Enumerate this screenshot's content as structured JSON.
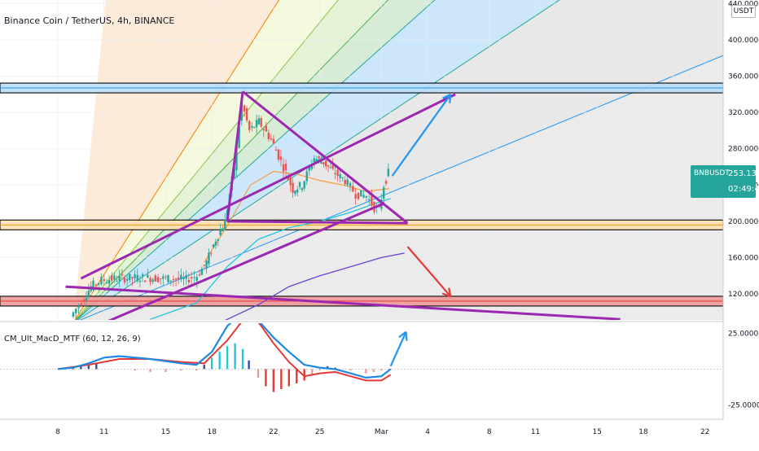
{
  "header": {
    "title": "Binance Coin / TetherUS, 4h, BINANCE",
    "unit_badge": [
      "USDT"
    ]
  },
  "price_badge": {
    "symbol": "BNBUSDT",
    "last_price": "253.1377",
    "countdown": "02:49:47"
  },
  "indicator": {
    "title": "CM_Ult_MacD_MTF (60, 12, 26, 9)",
    "scale": [
      {
        "label": "25.0000",
        "value": 25
      },
      {
        "label": "-25.0000",
        "value": -25
      }
    ]
  },
  "chart_data": {
    "type": "candlestick",
    "symbol": "Binance Coin / TetherUS",
    "interval": "4h",
    "exchange": "BINANCE",
    "quote_unit": "USDT",
    "ylim": [
      88,
      440
    ],
    "y_ticks": [
      {
        "label": "440.0000",
        "value": 440
      },
      {
        "label": "400.0000",
        "value": 400
      },
      {
        "label": "360.0000",
        "value": 360
      },
      {
        "label": "320.0000",
        "value": 320
      },
      {
        "label": "280.0000",
        "value": 280
      },
      {
        "label": "240.0000",
        "value": 240
      },
      {
        "label": "200.0000",
        "value": 200
      },
      {
        "label": "160.0000",
        "value": 160
      },
      {
        "label": "120.0000",
        "value": 120
      }
    ],
    "x_ticks": [
      {
        "label": "8",
        "day": 8
      },
      {
        "label": "11",
        "day": 11
      },
      {
        "label": "15",
        "day": 15
      },
      {
        "label": "18",
        "day": 18
      },
      {
        "label": "22",
        "day": 22
      },
      {
        "label": "25",
        "day": 25
      },
      {
        "label": "Mar",
        "day": 29
      },
      {
        "label": "4",
        "day": 32
      },
      {
        "label": "8",
        "day": 36
      },
      {
        "label": "11",
        "day": 39
      },
      {
        "label": "15",
        "day": 43
      },
      {
        "label": "18",
        "day": 46
      },
      {
        "label": "22",
        "day": 50
      }
    ],
    "price_path": [
      {
        "day": 9.0,
        "price": 95
      },
      {
        "day": 9.7,
        "price": 112
      },
      {
        "day": 10.3,
        "price": 128
      },
      {
        "day": 11.0,
        "price": 135
      },
      {
        "day": 12.0,
        "price": 137
      },
      {
        "day": 13.5,
        "price": 138
      },
      {
        "day": 15.0,
        "price": 137
      },
      {
        "day": 16.5,
        "price": 136
      },
      {
        "day": 17.2,
        "price": 140
      },
      {
        "day": 17.8,
        "price": 155
      },
      {
        "day": 18.4,
        "price": 180
      },
      {
        "day": 19.0,
        "price": 200
      },
      {
        "day": 19.6,
        "price": 260
      },
      {
        "day": 20.1,
        "price": 330
      },
      {
        "day": 20.6,
        "price": 300
      },
      {
        "day": 21.2,
        "price": 310
      },
      {
        "day": 22.0,
        "price": 290
      },
      {
        "day": 22.8,
        "price": 260
      },
      {
        "day": 23.4,
        "price": 235
      },
      {
        "day": 24.0,
        "price": 240
      },
      {
        "day": 24.8,
        "price": 270
      },
      {
        "day": 25.4,
        "price": 265
      },
      {
        "day": 26.0,
        "price": 255
      },
      {
        "day": 26.8,
        "price": 245
      },
      {
        "day": 27.5,
        "price": 230
      },
      {
        "day": 28.2,
        "price": 228
      },
      {
        "day": 28.7,
        "price": 215
      },
      {
        "day": 29.0,
        "price": 212
      },
      {
        "day": 29.3,
        "price": 240
      },
      {
        "day": 29.6,
        "price": 253
      }
    ],
    "moving_averages": [
      {
        "name": "",
        "color": "#f7a046",
        "points": [
          [
            17.5,
            155
          ],
          [
            19,
            195
          ],
          [
            20.5,
            240
          ],
          [
            22,
            255
          ],
          [
            23.5,
            252
          ],
          [
            25,
            245
          ],
          [
            26.5,
            240
          ],
          [
            28,
            233
          ],
          [
            29.5,
            236
          ]
        ]
      },
      {
        "name": "",
        "color": "#22c5e5",
        "points": [
          [
            14,
            92
          ],
          [
            17,
            110
          ],
          [
            19,
            150
          ],
          [
            21,
            180
          ],
          [
            23,
            193
          ],
          [
            25,
            200
          ],
          [
            27,
            210
          ],
          [
            29,
            222
          ],
          [
            29.6,
            225
          ]
        ]
      },
      {
        "name": "",
        "color": "#6c3fd6",
        "points": [
          [
            18.5,
            88
          ],
          [
            21,
            108
          ],
          [
            23,
            128
          ],
          [
            25,
            140
          ],
          [
            27,
            150
          ],
          [
            29,
            160
          ],
          [
            30.5,
            165
          ]
        ]
      }
    ],
    "horizontal_levels": [
      {
        "price": 347,
        "color": "#2196f3",
        "fill": "#bbdefb"
      },
      {
        "price": 196,
        "color": "#f39c12",
        "fill": "#ffe0b2"
      },
      {
        "price": 112,
        "color": "#e53935",
        "fill": "#ef9a9a"
      }
    ],
    "drawn_lines": [
      {
        "from": [
          20.0,
          343
        ],
        "to": [
          30.7,
          198
        ],
        "color": "#9c27b0"
      },
      {
        "from": [
          20.0,
          343
        ],
        "to": [
          19.0,
          200
        ],
        "color": "#9c27b0"
      },
      {
        "from": [
          19.0,
          200
        ],
        "to": [
          30.7,
          198
        ],
        "color": "#9c27b0"
      },
      {
        "from": [
          9.5,
          137
        ],
        "to": [
          33.8,
          340
        ],
        "color": "#9c27b0"
      },
      {
        "from": [
          8.5,
          128
        ],
        "to": [
          44.5,
          92
        ],
        "color": "#9c27b0"
      },
      {
        "from": [
          11.0,
          88
        ],
        "to": [
          29.2,
          220
        ],
        "color": "#9c27b0"
      }
    ],
    "forecast_arrows": [
      {
        "from": [
          29.7,
          250
        ],
        "to": [
          33.5,
          340
        ],
        "color": "#2196f3"
      },
      {
        "from": [
          30.7,
          172
        ],
        "to": [
          33.5,
          117
        ],
        "color": "#e53935"
      }
    ],
    "pitchfan": {
      "origin": [
        9.0,
        88
      ],
      "rays": [
        {
          "to": [
            22.2,
            440
          ],
          "color": "#f57c00"
        },
        {
          "to": [
            26.0,
            440
          ],
          "color": "#8bc34a"
        },
        {
          "to": [
            29.2,
            440
          ],
          "color": "#4caf50"
        },
        {
          "to": [
            32.2,
            440
          ],
          "color": "#26a69a"
        },
        {
          "to": [
            40.2,
            440
          ],
          "color": "#26a69a"
        },
        {
          "to": [
            51.5,
            385
          ],
          "color": "#2196f3"
        }
      ]
    },
    "macd": {
      "ylim": [
        -35,
        32
      ],
      "macd_line": [
        [
          8,
          0
        ],
        [
          9,
          1
        ],
        [
          10,
          4
        ],
        [
          11,
          8
        ],
        [
          12,
          9
        ],
        [
          14,
          7
        ],
        [
          16,
          4
        ],
        [
          17,
          3
        ],
        [
          18,
          12
        ],
        [
          19,
          30
        ],
        [
          20,
          40
        ],
        [
          21,
          34
        ],
        [
          22,
          22
        ],
        [
          23,
          12
        ],
        [
          24,
          3
        ],
        [
          25,
          1
        ],
        [
          26,
          0
        ],
        [
          27,
          -3
        ],
        [
          28,
          -6
        ],
        [
          29,
          -5
        ],
        [
          29.6,
          0
        ]
      ],
      "signal_line": [
        [
          8,
          0
        ],
        [
          10,
          3
        ],
        [
          12,
          7
        ],
        [
          14,
          7
        ],
        [
          16,
          5
        ],
        [
          17.5,
          4
        ],
        [
          19,
          20
        ],
        [
          20,
          34
        ],
        [
          21,
          33
        ],
        [
          22,
          18
        ],
        [
          23,
          5
        ],
        [
          24,
          -5
        ],
        [
          25,
          -3
        ],
        [
          26,
          -2
        ],
        [
          27,
          -5
        ],
        [
          28,
          -8
        ],
        [
          29,
          -8
        ],
        [
          29.6,
          -4
        ]
      ],
      "histogram": [
        [
          9,
          1
        ],
        [
          9.5,
          2
        ],
        [
          10,
          3
        ],
        [
          10.5,
          4
        ],
        [
          13,
          -1
        ],
        [
          14,
          -2
        ],
        [
          15,
          -2
        ],
        [
          16,
          -1
        ],
        [
          17,
          -1
        ],
        [
          17.5,
          3
        ],
        [
          18,
          8
        ],
        [
          18.5,
          12
        ],
        [
          19,
          16
        ],
        [
          19.5,
          18
        ],
        [
          20,
          14
        ],
        [
          20.4,
          6
        ],
        [
          21,
          -6
        ],
        [
          21.5,
          -12
        ],
        [
          22,
          -16
        ],
        [
          22.5,
          -14
        ],
        [
          23,
          -12
        ],
        [
          23.5,
          -10
        ],
        [
          24,
          -8
        ],
        [
          24.5,
          -4
        ],
        [
          25,
          -1
        ],
        [
          25.5,
          2
        ],
        [
          26,
          1
        ],
        [
          27,
          -1
        ],
        [
          28,
          -3
        ],
        [
          28.5,
          -2
        ],
        [
          29,
          -1
        ]
      ],
      "forecast_arrow": {
        "from": [
          29.6,
          2
        ],
        "to": [
          30.6,
          26
        ],
        "color": "#2196f3"
      }
    }
  }
}
